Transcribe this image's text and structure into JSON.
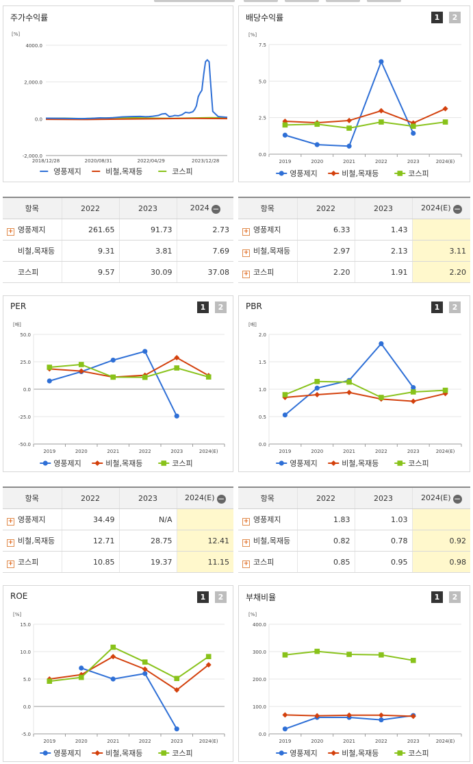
{
  "colors": {
    "s1": "#2e6fd6",
    "s2": "#d3400c",
    "s3": "#88c21a"
  },
  "panels": {
    "stock": {
      "title": "주가수익률"
    },
    "div": {
      "title": "배당수익률",
      "btn1": "1",
      "btn2": "2"
    },
    "per": {
      "title": "PER",
      "btn1": "1",
      "btn2": "2"
    },
    "pbr": {
      "title": "PBR",
      "btn1": "1",
      "btn2": "2"
    },
    "roe": {
      "title": "ROE",
      "btn1": "1",
      "btn2": "2"
    },
    "debt": {
      "title": "부채비율",
      "btn1": "1",
      "btn2": "2"
    }
  },
  "tables": {
    "stock": {
      "headers": [
        "항목",
        "2022",
        "2023",
        "2024"
      ],
      "rows": [
        {
          "name": "영풍제지",
          "plus": true,
          "v": [
            "261.65",
            "91.73",
            "2.73"
          ]
        },
        {
          "name": "비철,목재등",
          "plus": false,
          "v": [
            "9.31",
            "3.81",
            "7.69"
          ]
        },
        {
          "name": "코스피",
          "plus": false,
          "v": [
            "9.57",
            "30.09",
            "37.08"
          ]
        }
      ]
    },
    "div": {
      "headers": [
        "항목",
        "2022",
        "2023",
        "2024(E)"
      ],
      "rows": [
        {
          "name": "영풍제지",
          "plus": true,
          "v": [
            "6.33",
            "1.43",
            ""
          ]
        },
        {
          "name": "비철,목재등",
          "plus": true,
          "v": [
            "2.97",
            "2.13",
            "3.11"
          ]
        },
        {
          "name": "코스피",
          "plus": true,
          "v": [
            "2.20",
            "1.91",
            "2.20"
          ]
        }
      ]
    },
    "per": {
      "headers": [
        "항목",
        "2022",
        "2023",
        "2024(E)"
      ],
      "rows": [
        {
          "name": "영풍제지",
          "plus": true,
          "v": [
            "34.49",
            "N/A",
            ""
          ]
        },
        {
          "name": "비철,목재등",
          "plus": true,
          "v": [
            "12.71",
            "28.75",
            "12.41"
          ]
        },
        {
          "name": "코스피",
          "plus": true,
          "v": [
            "10.85",
            "19.37",
            "11.15"
          ]
        }
      ]
    },
    "pbr": {
      "headers": [
        "항목",
        "2022",
        "2023",
        "2024(E)"
      ],
      "rows": [
        {
          "name": "영풍제지",
          "plus": true,
          "v": [
            "1.83",
            "1.03",
            ""
          ]
        },
        {
          "name": "비철,목재등",
          "plus": true,
          "v": [
            "0.82",
            "0.78",
            "0.92"
          ]
        },
        {
          "name": "코스피",
          "plus": true,
          "v": [
            "0.85",
            "0.95",
            "0.98"
          ]
        }
      ]
    }
  },
  "chart_data": [
    {
      "id": "stock",
      "type": "line",
      "unit": "[%]",
      "series_names": [
        "영풍제지",
        "비철,목재등",
        "코스피"
      ],
      "x_ticks": [
        "2018/12/28",
        "2020/08/31",
        "2022/04/29",
        "2023/12/28"
      ],
      "yticks": [
        -2000,
        0,
        2000,
        4000
      ],
      "yticklabels": [
        "-2,000.0",
        "0.0",
        "2,000.0",
        "4000.0"
      ],
      "ylim": [
        -2000,
        4000
      ],
      "x_domain": [
        0,
        100
      ],
      "series": [
        {
          "name": "영풍제지",
          "x": [
            0,
            10,
            20,
            25,
            30,
            33,
            37,
            42,
            47,
            52,
            55,
            57,
            59,
            62,
            64,
            66,
            68,
            70,
            71,
            73,
            75,
            77,
            79,
            81,
            82,
            83,
            84,
            85,
            86,
            87,
            88,
            89,
            90,
            91,
            92,
            95,
            100
          ],
          "y": [
            30,
            20,
            10,
            20,
            50,
            40,
            60,
            100,
            120,
            130,
            110,
            120,
            140,
            180,
            260,
            280,
            120,
            150,
            180,
            160,
            220,
            350,
            320,
            380,
            500,
            700,
            1200,
            1400,
            1550,
            2400,
            3100,
            3200,
            3100,
            1700,
            400,
            120,
            80
          ]
        },
        {
          "name": "비철,목재등",
          "x": [
            0,
            20,
            40,
            60,
            80,
            100
          ],
          "y": [
            -30,
            -40,
            -20,
            0,
            20,
            10
          ]
        },
        {
          "name": "코스피",
          "x": [
            0,
            10,
            20,
            30,
            40,
            50,
            60,
            70,
            80,
            90,
            100
          ],
          "y": [
            20,
            30,
            10,
            40,
            60,
            50,
            30,
            20,
            40,
            60,
            50
          ]
        }
      ]
    },
    {
      "id": "div",
      "type": "line",
      "unit": "[%]",
      "categories": [
        "2019",
        "2020",
        "2021",
        "2022",
        "2023",
        "2024(E)"
      ],
      "yticks": [
        0,
        2.5,
        5,
        7.5
      ],
      "yticklabels": [
        "0.0",
        "2.5",
        "5.0",
        "7.5"
      ],
      "ylim": [
        0,
        7.5
      ],
      "series": [
        {
          "name": "영풍제지",
          "values": [
            1.3,
            0.65,
            0.55,
            6.33,
            1.43,
            null
          ]
        },
        {
          "name": "비철,목재등",
          "values": [
            2.25,
            2.15,
            2.3,
            2.97,
            2.13,
            3.11
          ]
        },
        {
          "name": "코스피",
          "values": [
            2.0,
            2.05,
            1.78,
            2.2,
            1.91,
            2.2
          ]
        }
      ]
    },
    {
      "id": "per",
      "type": "line",
      "unit": "[배]",
      "categories": [
        "2019",
        "2020",
        "2021",
        "2022",
        "2023",
        "2024(E)"
      ],
      "yticks": [
        -50,
        -25,
        0,
        25,
        50
      ],
      "yticklabels": [
        "-50.0",
        "-25.0",
        "0.0",
        "25.0",
        "50.0"
      ],
      "ylim": [
        -50,
        50
      ],
      "series": [
        {
          "name": "영풍제지",
          "values": [
            7.5,
            16.0,
            26.5,
            34.49,
            -24.5,
            null
          ]
        },
        {
          "name": "비철,목재등",
          "values": [
            18.5,
            16.5,
            11.0,
            12.71,
            28.75,
            12.41
          ]
        },
        {
          "name": "코스피",
          "values": [
            20.0,
            22.5,
            11.0,
            10.85,
            19.37,
            11.15
          ]
        }
      ]
    },
    {
      "id": "pbr",
      "type": "line",
      "unit": "[배]",
      "categories": [
        "2019",
        "2020",
        "2021",
        "2022",
        "2023",
        "2024(E)"
      ],
      "yticks": [
        0,
        0.5,
        1,
        1.5,
        2
      ],
      "yticklabels": [
        "0.0",
        "0.5",
        "1.0",
        "1.5",
        "2.0"
      ],
      "ylim": [
        0,
        2
      ],
      "series": [
        {
          "name": "영풍제지",
          "values": [
            0.53,
            1.02,
            1.16,
            1.83,
            1.03,
            null
          ]
        },
        {
          "name": "비철,목재등",
          "values": [
            0.85,
            0.9,
            0.94,
            0.82,
            0.78,
            0.92
          ]
        },
        {
          "name": "코스피",
          "values": [
            0.9,
            1.14,
            1.13,
            0.85,
            0.95,
            0.98
          ]
        }
      ]
    },
    {
      "id": "roe",
      "type": "line",
      "unit": "[%]",
      "categories": [
        "2019",
        "2020",
        "2021",
        "2022",
        "2023",
        "2024(E)"
      ],
      "yticks": [
        -5,
        0,
        5,
        10,
        15
      ],
      "yticklabels": [
        "-5.0",
        "0.0",
        "5.0",
        "10.0",
        "15.0"
      ],
      "ylim": [
        -5,
        15
      ],
      "series": [
        {
          "name": "영풍제지",
          "values": [
            null,
            7.0,
            5.0,
            6.0,
            -4.1,
            null
          ]
        },
        {
          "name": "비철,목재등",
          "values": [
            5.0,
            5.8,
            9.1,
            6.8,
            3.0,
            7.6
          ]
        },
        {
          "name": "코스피",
          "values": [
            4.6,
            5.3,
            10.8,
            8.1,
            5.1,
            9.1
          ]
        }
      ]
    },
    {
      "id": "debt",
      "type": "line",
      "unit": "[%]",
      "categories": [
        "2019",
        "2020",
        "2021",
        "2022",
        "2023",
        "2024(E)"
      ],
      "yticks": [
        0,
        100,
        200,
        300,
        400
      ],
      "yticklabels": [
        "0.0",
        "100.0",
        "200.0",
        "300.0",
        "400.0"
      ],
      "ylim": [
        0,
        400
      ],
      "series": [
        {
          "name": "영풍제지",
          "values": [
            18,
            60,
            60,
            51,
            67,
            null
          ]
        },
        {
          "name": "비철,목재등",
          "values": [
            69,
            66,
            68,
            68,
            64,
            null
          ]
        },
        {
          "name": "코스피",
          "values": [
            288,
            301,
            290,
            288,
            268,
            null
          ]
        }
      ]
    }
  ]
}
